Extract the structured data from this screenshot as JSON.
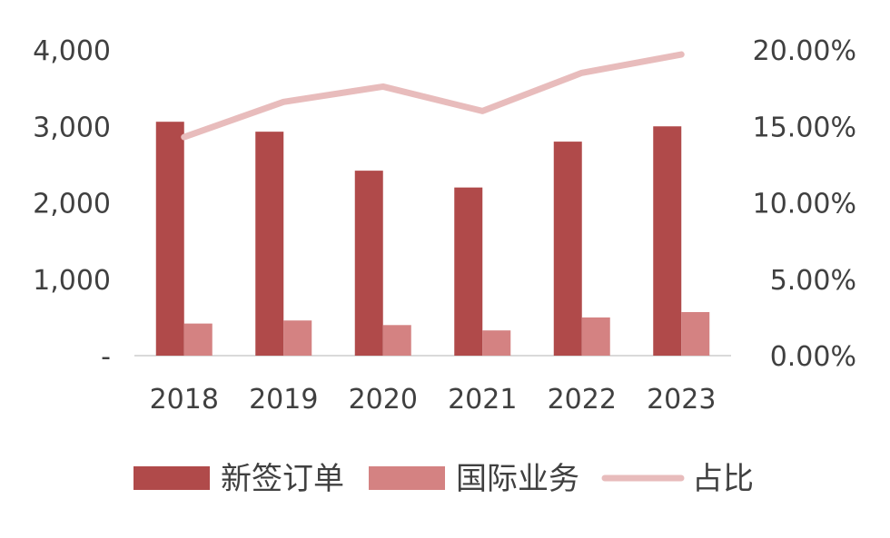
{
  "chart_data": {
    "type": "bar",
    "categories": [
      "2018",
      "2019",
      "2020",
      "2021",
      "2022",
      "2023"
    ],
    "series": [
      {
        "name": "新签订单",
        "type": "bar",
        "axis": "left",
        "color": "#b04a4a",
        "values": [
          3060,
          2930,
          2420,
          2200,
          2800,
          3000
        ]
      },
      {
        "name": "国际业务",
        "type": "bar",
        "axis": "left",
        "color": "#d48282",
        "values": [
          420,
          460,
          400,
          330,
          500,
          570
        ]
      },
      {
        "name": "占比",
        "type": "line",
        "axis": "right",
        "color": "#e8bcbc",
        "values": [
          14.3,
          16.6,
          17.6,
          16.0,
          18.5,
          19.7
        ]
      }
    ],
    "left_axis": {
      "ylim": [
        0,
        4000
      ],
      "ticks": [
        0,
        1000,
        2000,
        3000,
        4000
      ],
      "tick_labels": [
        "-",
        "1,000",
        "2,000",
        "3,000",
        "4,000"
      ]
    },
    "right_axis": {
      "ylim": [
        0,
        20
      ],
      "ticks": [
        0,
        5,
        10,
        15,
        20
      ],
      "tick_labels": [
        "0.00%",
        "5.00%",
        "10.00%",
        "15.00%",
        "20.00%"
      ]
    },
    "legend": {
      "position": "bottom",
      "entries": [
        "新签订单",
        "国际业务",
        "占比"
      ]
    },
    "grid": false
  }
}
